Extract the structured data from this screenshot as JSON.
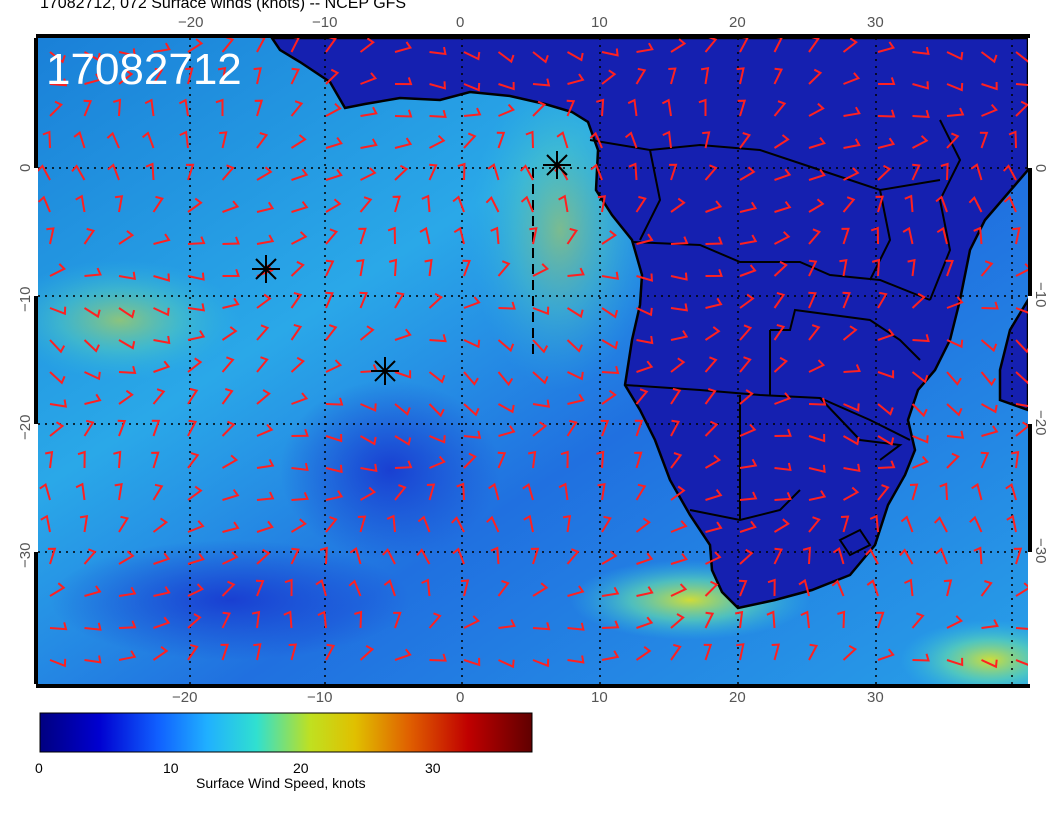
{
  "title": "17082712, 072 Surface winds (knots) -- NCEP GFS",
  "stamp": "17082712",
  "lon_ticks": [
    "−20",
    "−10",
    "0",
    "10",
    "20",
    "30"
  ],
  "lat_ticks": [
    "0",
    "−10",
    "−20",
    "−30"
  ],
  "colorbar": {
    "label": "Surface Wind Speed, knots",
    "ticks": [
      "0",
      "10",
      "20",
      "30"
    ],
    "range": [
      0,
      38
    ],
    "colors": [
      "#000080",
      "#0000d0",
      "#1060ff",
      "#20b0ff",
      "#30e0d0",
      "#c0e020",
      "#e0c000",
      "#e06000",
      "#c00000",
      "#600000"
    ]
  },
  "map": {
    "lon_range": [
      -30,
      42
    ],
    "lat_range": [
      -40,
      9
    ],
    "ocean_color": "#1f8fe0",
    "land_color": "#1520b0",
    "barb_color": "#ff0000",
    "storm_markers": [
      "asterisk-marker",
      "asterisk-marker",
      "asterisk-marker"
    ]
  }
}
